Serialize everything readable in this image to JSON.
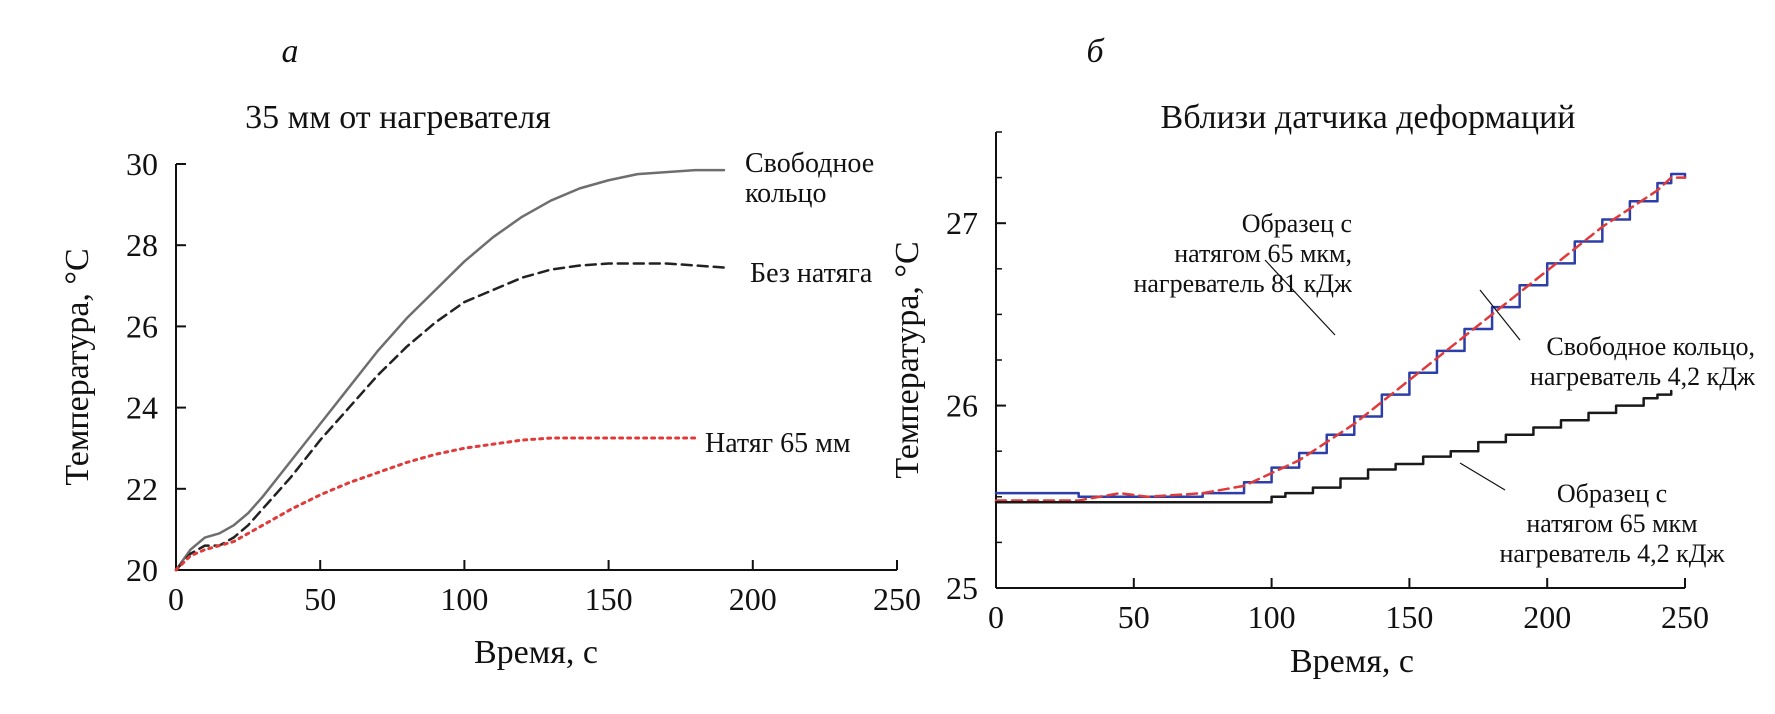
{
  "chart_data": [
    {
      "panel_label": "а",
      "type": "line",
      "title": "35 мм от нагревателя",
      "xlabel": "Время, с",
      "ylabel": "Температура, °С",
      "xlim": [
        0,
        250
      ],
      "ylim": [
        20,
        30
      ],
      "xticks": [
        "0",
        "50",
        "100",
        "150",
        "200",
        "250"
      ],
      "yticks": [
        "20",
        "22",
        "24",
        "26",
        "28",
        "30"
      ],
      "grid": false,
      "series": [
        {
          "name": "Свободное кольцо",
          "label_lines": [
            "Свободное",
            "кольцо"
          ],
          "color": "#6e6e6e",
          "style": "solid",
          "x": [
            0,
            5,
            10,
            15,
            20,
            25,
            30,
            40,
            50,
            60,
            70,
            80,
            90,
            100,
            110,
            120,
            130,
            140,
            150,
            160,
            170,
            180,
            190
          ],
          "y": [
            20.0,
            20.5,
            20.8,
            20.9,
            21.1,
            21.4,
            21.8,
            22.7,
            23.6,
            24.5,
            25.4,
            26.2,
            26.9,
            27.6,
            28.2,
            28.7,
            29.1,
            29.4,
            29.6,
            29.75,
            29.8,
            29.85,
            29.85
          ]
        },
        {
          "name": "Без натяга",
          "label_lines": [
            "Без натяга"
          ],
          "color": "#222222",
          "style": "dashed",
          "x": [
            0,
            5,
            10,
            15,
            20,
            25,
            30,
            40,
            50,
            60,
            70,
            80,
            90,
            100,
            110,
            120,
            130,
            140,
            150,
            160,
            170,
            180,
            190
          ],
          "y": [
            20.0,
            20.4,
            20.6,
            20.6,
            20.8,
            21.1,
            21.5,
            22.3,
            23.2,
            24.0,
            24.8,
            25.5,
            26.1,
            26.6,
            26.9,
            27.2,
            27.4,
            27.5,
            27.55,
            27.55,
            27.55,
            27.5,
            27.45
          ]
        },
        {
          "name": "Натяг 65 мм",
          "label_lines": [
            "Натяг 65 мм"
          ],
          "color": "#e03a3a",
          "style": "dotted",
          "x": [
            0,
            5,
            10,
            15,
            20,
            30,
            40,
            50,
            60,
            70,
            80,
            90,
            100,
            110,
            120,
            130,
            140,
            150,
            160,
            170,
            180
          ],
          "y": [
            20.0,
            20.35,
            20.5,
            20.6,
            20.7,
            21.1,
            21.5,
            21.85,
            22.15,
            22.4,
            22.65,
            22.85,
            23.0,
            23.1,
            23.2,
            23.25,
            23.25,
            23.25,
            23.25,
            23.25,
            23.25
          ]
        }
      ]
    },
    {
      "panel_label": "б",
      "type": "line",
      "title": "Вблизи датчика деформаций",
      "xlabel": "Время, с",
      "ylabel": "Температура, °С",
      "xlim": [
        0,
        250
      ],
      "ylim": [
        25,
        27.5
      ],
      "xticks": [
        "0",
        "50",
        "100",
        "150",
        "200",
        "250"
      ],
      "yticks": [
        "25",
        "26",
        "27"
      ],
      "grid": false,
      "series": [
        {
          "name": "Образец с натягом 65 мкм, нагреватель 81 кДж",
          "label_lines": [
            "Образец с",
            "натягом 65 мкм,",
            "нагреватель 81 кДж"
          ],
          "color": "#2c3ea8",
          "style": "solid-step",
          "x": [
            0,
            30,
            75,
            90,
            100,
            110,
            120,
            130,
            140,
            150,
            160,
            170,
            180,
            190,
            200,
            210,
            220,
            230,
            240,
            245,
            250
          ],
          "y": [
            25.52,
            25.5,
            25.52,
            25.58,
            25.66,
            25.74,
            25.84,
            25.94,
            26.06,
            26.18,
            26.3,
            26.42,
            26.54,
            26.66,
            26.78,
            26.9,
            27.02,
            27.12,
            27.22,
            27.27,
            27.25
          ]
        },
        {
          "name": "Свободное кольцо, нагреватель 4,2 кДж",
          "label_lines": [
            "Свободное кольцо,",
            "нагреватель 4,2 кДж"
          ],
          "color": "#e03a3a",
          "style": "dashed",
          "x": [
            0,
            30,
            45,
            55,
            75,
            90,
            100,
            110,
            120,
            130,
            140,
            150,
            160,
            170,
            180,
            190,
            200,
            210,
            220,
            230,
            240,
            245,
            250
          ],
          "y": [
            25.48,
            25.48,
            25.52,
            25.5,
            25.52,
            25.56,
            25.63,
            25.7,
            25.8,
            25.9,
            26.02,
            26.14,
            26.26,
            26.38,
            26.5,
            26.62,
            26.74,
            26.86,
            26.98,
            27.08,
            27.18,
            27.25,
            27.25
          ]
        },
        {
          "name": "Образец с натягом 65 мкм нагреватель 4,2 кДж",
          "label_lines": [
            "Образец с",
            "натягом 65 мкм",
            "нагреватель 4,2 кДж"
          ],
          "color": "#1a1a1a",
          "style": "solid-step",
          "x": [
            0,
            95,
            100,
            105,
            115,
            125,
            135,
            145,
            155,
            165,
            175,
            185,
            195,
            205,
            215,
            225,
            235,
            240,
            245
          ],
          "y": [
            25.47,
            25.47,
            25.5,
            25.52,
            25.55,
            25.6,
            25.65,
            25.68,
            25.72,
            25.75,
            25.8,
            25.84,
            25.88,
            25.92,
            25.96,
            26.0,
            26.04,
            26.06,
            26.08
          ]
        }
      ]
    }
  ]
}
